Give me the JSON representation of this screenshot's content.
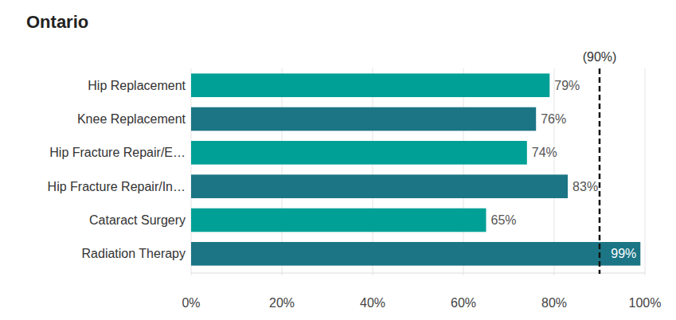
{
  "chart_data": {
    "type": "bar",
    "orientation": "horizontal",
    "title": "Ontario",
    "categories": [
      "Hip Replacement",
      "Knee Replacement",
      "Hip Fracture Repair/E…",
      "Hip Fracture Repair/In…",
      "Cataract Surgery",
      "Radiation Therapy"
    ],
    "values": [
      79,
      76,
      74,
      83,
      65,
      99
    ],
    "value_labels": [
      "79%",
      "76%",
      "74%",
      "83%",
      "65%",
      "99%"
    ],
    "data_labels": true,
    "colors": [
      "#00a096",
      "#1b7585",
      "#00a096",
      "#1b7585",
      "#00a096",
      "#1b7585"
    ],
    "xlim": [
      0,
      100
    ],
    "xticks": [
      {
        "value": 0,
        "label": "0%"
      },
      {
        "value": 20,
        "label": "20%"
      },
      {
        "value": 40,
        "label": "40%"
      },
      {
        "value": 60,
        "label": "60%"
      },
      {
        "value": 80,
        "label": "80%"
      },
      {
        "value": 100,
        "label": "100%"
      }
    ],
    "grid": true,
    "annotations": [
      {
        "x": 90,
        "label": "(90%)"
      }
    ]
  }
}
